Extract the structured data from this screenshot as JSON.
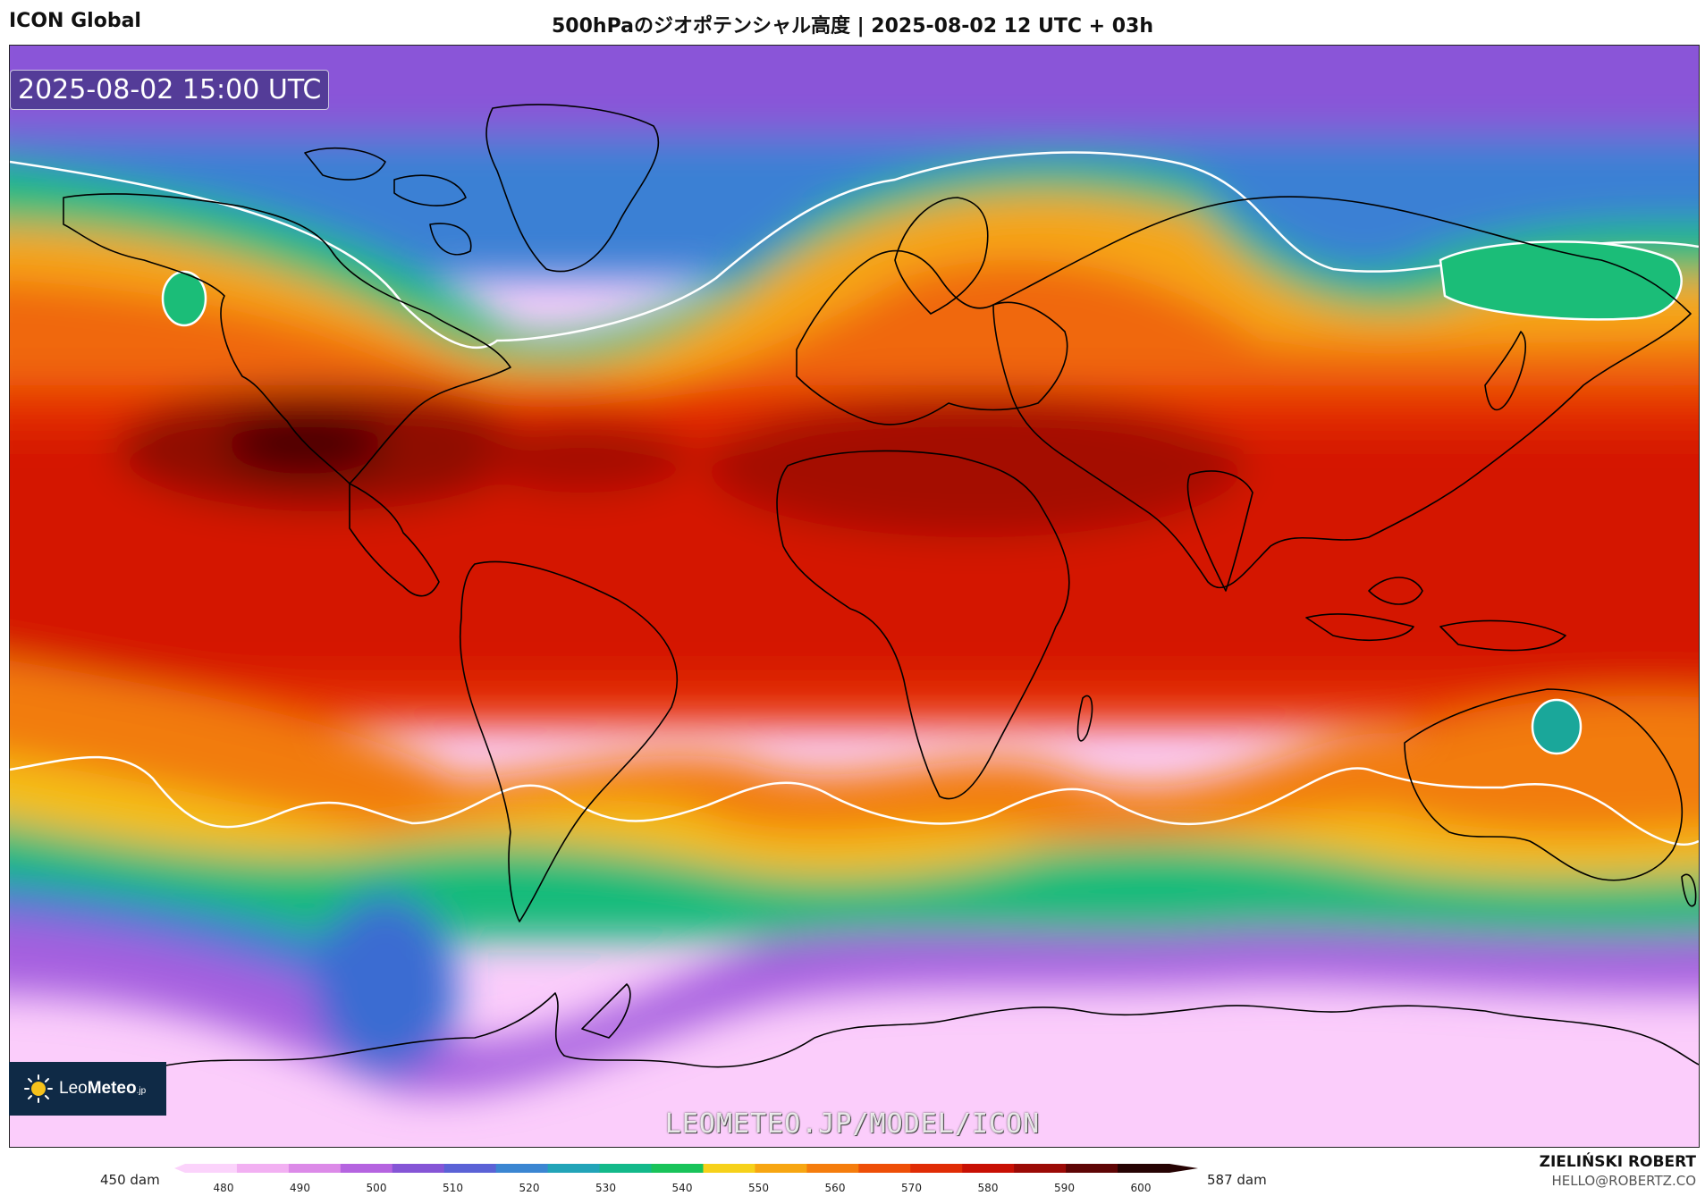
{
  "header": {
    "model": "ICON Global",
    "title": "500hPaのジオポテンシャル高度 | 2025-08-02 12 UTC + 03h"
  },
  "map": {
    "valid_time": "2025-08-02 15:00 UTC",
    "watermark": "LEOMETEO.JP/MODEL/ICON",
    "logo": {
      "name_light": "Leo",
      "name_bold": "Meteo",
      "suffix": ".jp"
    }
  },
  "colorbar": {
    "min_label": "450 dam",
    "max_label": "587 dam",
    "ticks": [
      "480",
      "490",
      "500",
      "510",
      "520",
      "530",
      "540",
      "550",
      "560",
      "570",
      "580",
      "590",
      "600"
    ],
    "colors": [
      "#fbd3fb",
      "#f2b0f2",
      "#dc8ae8",
      "#b564e0",
      "#8555d6",
      "#5b62d6",
      "#3b86d2",
      "#22a4b8",
      "#13b98a",
      "#19c35a",
      "#f6d11a",
      "#f7a612",
      "#f57d0d",
      "#ee4f08",
      "#e02c05",
      "#c81004",
      "#9b0a06",
      "#5e0505",
      "#260303"
    ]
  },
  "credit": {
    "name": "ZIELIŃSKI ROBERT",
    "email": "HELLO@ROBERTZ.CO"
  }
}
